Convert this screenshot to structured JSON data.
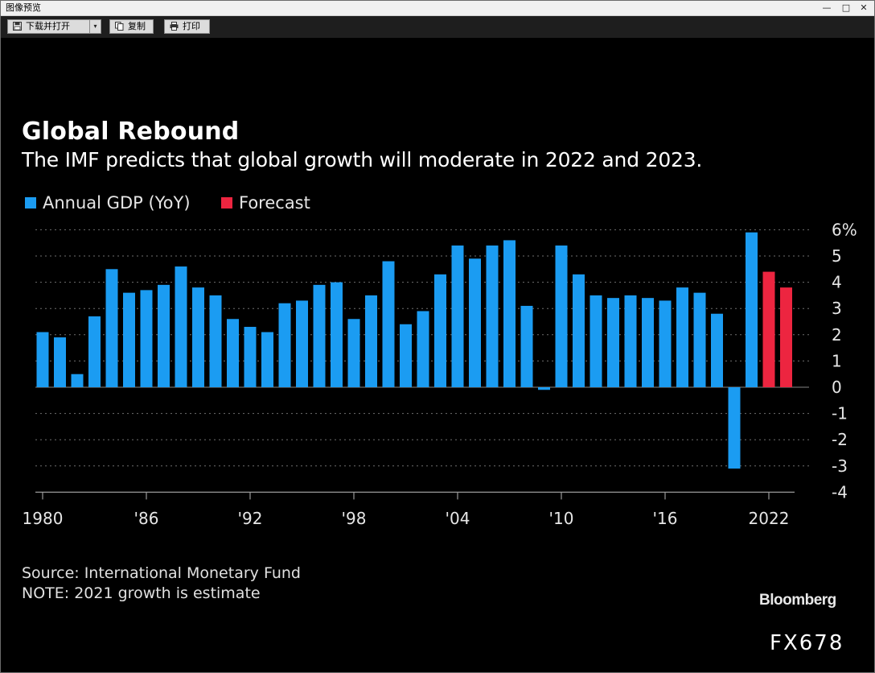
{
  "window": {
    "title": "图像预览"
  },
  "toolbar": {
    "download_open_label": "下载并打开",
    "dropdown_glyph": "▾",
    "copy_label": "复制",
    "print_label": "打印"
  },
  "chart_data": {
    "type": "bar",
    "title": "Global Rebound",
    "subtitle": "The IMF predicts that global growth will moderate in 2022 and 2023.",
    "legend": [
      {
        "name": "Annual GDP (YoY)",
        "color": "#1b9cf2"
      },
      {
        "name": "Forecast",
        "color": "#ed2540"
      }
    ],
    "x": [
      1980,
      1981,
      1982,
      1983,
      1984,
      1985,
      1986,
      1987,
      1988,
      1989,
      1990,
      1991,
      1992,
      1993,
      1994,
      1995,
      1996,
      1997,
      1998,
      1999,
      2000,
      2001,
      2002,
      2003,
      2004,
      2005,
      2006,
      2007,
      2008,
      2009,
      2010,
      2011,
      2012,
      2013,
      2014,
      2015,
      2016,
      2017,
      2018,
      2019,
      2020,
      2021,
      2022,
      2023
    ],
    "values": [
      2.1,
      1.9,
      0.5,
      2.7,
      4.5,
      3.6,
      3.7,
      3.9,
      4.6,
      3.8,
      3.5,
      2.6,
      2.3,
      2.1,
      3.2,
      3.3,
      3.9,
      4.0,
      2.6,
      3.5,
      4.8,
      2.4,
      2.9,
      4.3,
      5.4,
      4.9,
      5.4,
      5.6,
      3.1,
      -0.1,
      5.4,
      4.3,
      3.5,
      3.4,
      3.5,
      3.4,
      3.3,
      3.8,
      3.6,
      2.8,
      -3.1,
      5.9,
      4.4,
      3.8
    ],
    "forecast_from": 2022,
    "ylim": [
      -4,
      6
    ],
    "yticks": [
      -4,
      -3,
      -2,
      -1,
      0,
      1,
      2,
      3,
      4,
      5,
      6
    ],
    "ytick_labels": [
      "-4",
      "-3",
      "-2",
      "-1",
      "0",
      "1",
      "2",
      "3",
      "4",
      "5",
      "6%"
    ],
    "xticks": [
      1980,
      1986,
      1992,
      1998,
      2004,
      2010,
      2016,
      2022
    ],
    "xtick_labels": [
      "1980",
      "'86",
      "'92",
      "'98",
      "'04",
      "'10",
      "'16",
      "2022"
    ],
    "grid": "dotted horizontal",
    "xlabel": "",
    "ylabel": ""
  },
  "footer": {
    "source": "Source: International Monetary Fund",
    "note": "NOTE: 2021 growth is estimate",
    "brand": "Bloomberg",
    "code": "FX678"
  }
}
